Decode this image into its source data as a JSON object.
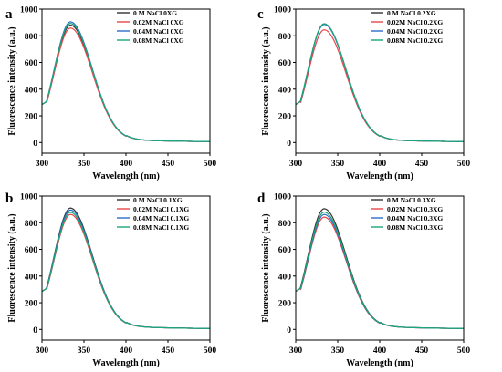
{
  "chart_data": [
    {
      "panel": "a",
      "type": "line",
      "xlabel": "Wavelength (nm)",
      "ylabel": "Fluorescence intensity (a.u.)",
      "xlim": [
        300,
        500
      ],
      "ylim": [
        -80,
        1000
      ],
      "xticks": [
        300,
        350,
        400,
        450,
        500
      ],
      "yticks": [
        0,
        200,
        400,
        600,
        800,
        1000
      ],
      "legend_position": "top-right",
      "series": [
        {
          "name": "0     M NaCl  0XG",
          "color": "#333333",
          "peak": 880
        },
        {
          "name": "0.02M NaCl  0XG",
          "color": "#e8474b",
          "peak": 858
        },
        {
          "name": "0.04M NaCl  0XG",
          "color": "#2b6fc9",
          "peak": 905
        },
        {
          "name": "0.08M NaCl  0XG",
          "color": "#19a878",
          "peak": 893
        }
      ]
    },
    {
      "panel": "c",
      "type": "line",
      "xlabel": "Wavelength (nm)",
      "ylabel": "Fluorescence intensity (a.u.)",
      "xlim": [
        300,
        500
      ],
      "ylim": [
        -80,
        1000
      ],
      "xticks": [
        300,
        350,
        400,
        450,
        500
      ],
      "yticks": [
        0,
        200,
        400,
        600,
        800,
        1000
      ],
      "legend_position": "top-right",
      "series": [
        {
          "name": "0     M NaCl  0.2XG",
          "color": "#333333",
          "peak": 890
        },
        {
          "name": "0.02M NaCl  0.2XG",
          "color": "#e8474b",
          "peak": 845
        },
        {
          "name": "0.04M NaCl  0.2XG",
          "color": "#2b6fc9",
          "peak": 885
        },
        {
          "name": "0.08M NaCl  0.2XG",
          "color": "#19a878",
          "peak": 890
        }
      ]
    },
    {
      "panel": "b",
      "type": "line",
      "xlabel": "Wavelength (nm)",
      "ylabel": "Fluorescence intensity (a.u.)",
      "xlim": [
        300,
        500
      ],
      "ylim": [
        -80,
        1000
      ],
      "xticks": [
        300,
        350,
        400,
        450,
        500
      ],
      "yticks": [
        0,
        200,
        400,
        600,
        800,
        1000
      ],
      "legend_position": "top-right",
      "series": [
        {
          "name": "0     M NaCl  0.1XG",
          "color": "#333333",
          "peak": 910
        },
        {
          "name": "0.02M NaCl  0.1XG",
          "color": "#e8474b",
          "peak": 862
        },
        {
          "name": "0.04M NaCl  0.1XG",
          "color": "#2b6fc9",
          "peak": 895
        },
        {
          "name": "0.08M NaCl  0.1XG",
          "color": "#19a878",
          "peak": 878
        }
      ]
    },
    {
      "panel": "d",
      "type": "line",
      "xlabel": "Wavelength (nm)",
      "ylabel": "Fluorescence intensity (a.u.)",
      "xlim": [
        300,
        500
      ],
      "ylim": [
        -80,
        1000
      ],
      "xticks": [
        300,
        350,
        400,
        450,
        500
      ],
      "yticks": [
        0,
        200,
        400,
        600,
        800,
        1000
      ],
      "legend_position": "top-right",
      "series": [
        {
          "name": "0     M NaCl  0.3XG",
          "color": "#333333",
          "peak": 905
        },
        {
          "name": "0.02M NaCl  0.3XG",
          "color": "#e8474b",
          "peak": 842
        },
        {
          "name": "0.04M NaCl  0.3XG",
          "color": "#2b6fc9",
          "peak": 862
        },
        {
          "name": "0.08M NaCl  0.3XG",
          "color": "#19a878",
          "peak": 880
        }
      ]
    }
  ]
}
